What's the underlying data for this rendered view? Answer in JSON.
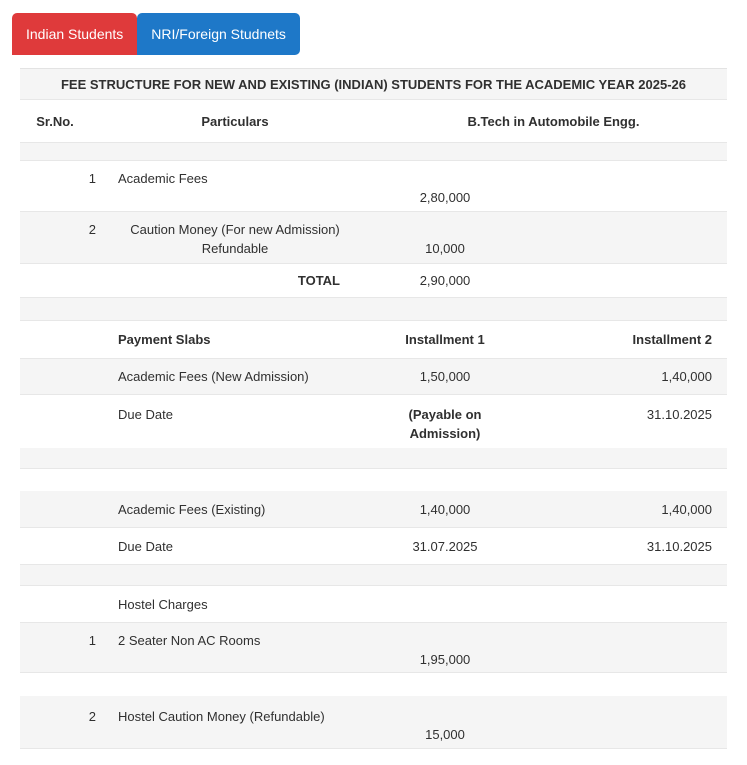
{
  "tabs": {
    "indian": {
      "label": "Indian Students",
      "color": "#df3a3b",
      "active": true
    },
    "nri": {
      "label": "NRI/Foreign Studnets",
      "color": "#1e78c8",
      "active": false
    }
  },
  "fee_table": {
    "title": "FEE STRUCTURE FOR NEW AND EXISTING (INDIAN) STUDENTS FOR THE ACADEMIC YEAR 2025-26",
    "header": {
      "sr_no": "Sr.No.",
      "particulars": "Particulars",
      "course": "B.Tech in Automobile Engg."
    },
    "items": [
      {
        "sr": "1",
        "name": "Academic Fees",
        "amount": "2,80,000"
      },
      {
        "sr": "2",
        "name_line1": "Caution Money (For new Admission)",
        "name_line2": "Refundable",
        "amount": "10,000"
      }
    ],
    "total": {
      "label": "TOTAL",
      "amount": "2,90,000"
    },
    "payment_slabs": {
      "header": {
        "label": "Payment Slabs",
        "installment1": "Installment 1",
        "installment2": "Installment 2"
      },
      "rows": [
        {
          "label": "Academic Fees (New Admission)",
          "installment1": "1,50,000",
          "installment2": "1,40,000"
        },
        {
          "label": "Due Date",
          "installment1": "(Payable on Admission)",
          "installment2": "31.10.2025"
        },
        {
          "label": "Academic Fees (Existing)",
          "installment1": "1,40,000",
          "installment2": "1,40,000"
        },
        {
          "label": "Due Date",
          "installment1": "31.07.2025",
          "installment2": "31.10.2025"
        }
      ]
    },
    "hostel": {
      "section_label": "Hostel Charges",
      "items": [
        {
          "sr": "1",
          "name": "2 Seater Non AC Rooms",
          "amount": "1,95,000"
        },
        {
          "sr": "2",
          "name": "Hostel Caution Money (Refundable)",
          "amount": "15,000"
        }
      ]
    },
    "colors": {
      "stripe": "#f5f5f5",
      "border": "#e7e7e7",
      "text": "#303030"
    }
  }
}
